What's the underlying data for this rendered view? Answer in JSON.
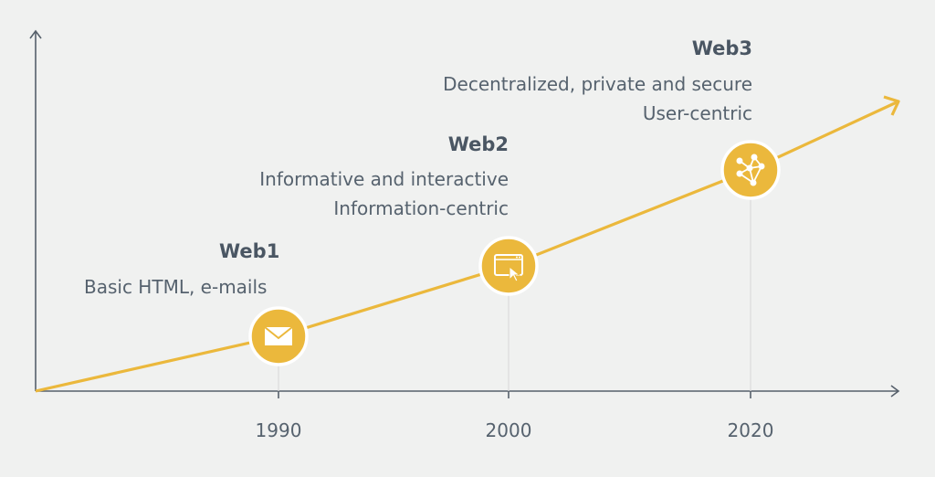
{
  "colors": {
    "background": "#f0f1f0",
    "axis": "#56606b",
    "accent": "#ebb83c",
    "text": "#56626e"
  },
  "eras": [
    {
      "title": "Web1",
      "lines": [
        "Basic HTML, e-mails"
      ],
      "year": "1990",
      "icon": "envelope-icon"
    },
    {
      "title": "Web2",
      "lines": [
        "Informative and interactive",
        "Information-centric"
      ],
      "year": "2000",
      "icon": "browser-cursor-icon"
    },
    {
      "title": "Web3",
      "lines": [
        "Decentralized, private and secure",
        "User-centric"
      ],
      "year": "2020",
      "icon": "network-graph-icon"
    }
  ]
}
